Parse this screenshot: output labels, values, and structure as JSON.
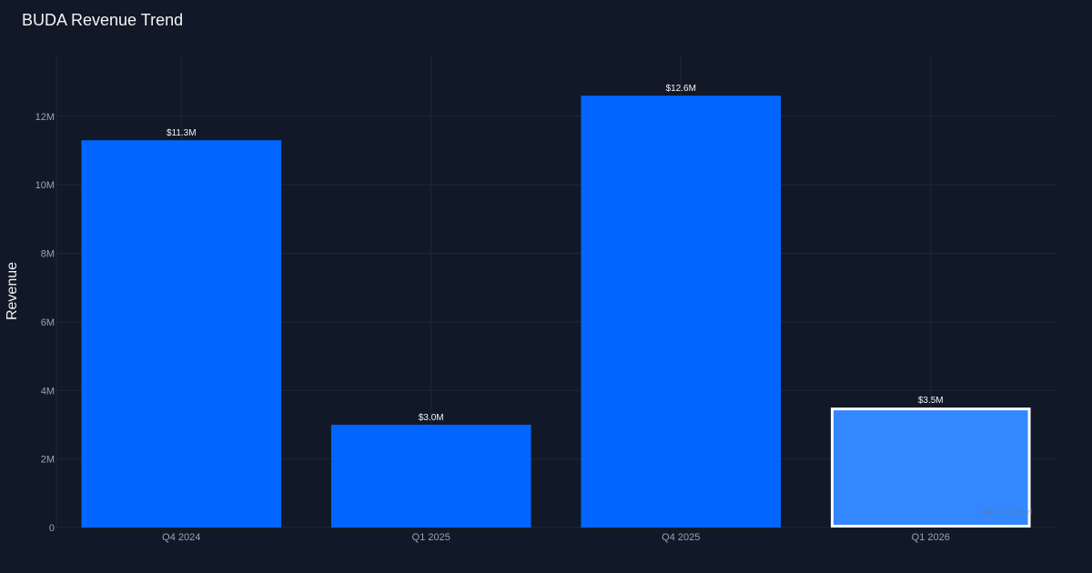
{
  "chart_data": {
    "type": "bar",
    "title": "BUDA Revenue Trend",
    "xlabel": "",
    "ylabel": "Revenue",
    "categories": [
      "Q4 2024",
      "Q1 2025",
      "Q4 2025",
      "Q1 2026"
    ],
    "values": [
      11.3,
      3.0,
      12.6,
      3.5
    ],
    "value_unit": "M USD",
    "data_labels": [
      "$11.3M",
      "$3.0M",
      "$12.6M",
      "$3.5M"
    ],
    "highlighted_category": "Q1 2026",
    "ylim": [
      0,
      13.8
    ],
    "yticks": [
      0,
      2,
      4,
      6,
      8,
      10,
      12
    ],
    "ytick_labels": [
      "0",
      "2M",
      "4M",
      "6M",
      "8M",
      "10M",
      "12M"
    ],
    "grid": true,
    "colors": {
      "background": "#111827",
      "bar": "#0066ff",
      "bar_highlight": "#3388ff",
      "highlight_border": "#ffffff",
      "grid": "#1f2937",
      "text": "#f3f4f6",
      "tick_text": "#9ca3af"
    }
  },
  "watermark": "AlphaStreet"
}
